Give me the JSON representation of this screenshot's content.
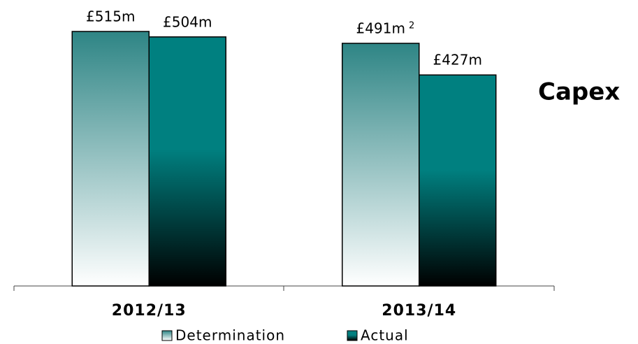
{
  "chart_data": {
    "type": "bar",
    "title": "Capex",
    "categories": [
      "2012/13",
      "2013/14"
    ],
    "series": [
      {
        "name": "Determination",
        "color": "#2e8585",
        "values": [
          515,
          491
        ],
        "value_labels": [
          "£515m",
          "£491m"
        ]
      },
      {
        "name": "Actual",
        "color": "#008080",
        "values": [
          504,
          427
        ],
        "value_labels": [
          "£504m",
          "£427m"
        ]
      }
    ],
    "annotations": [
      "2"
    ],
    "ylim": [
      0,
      515
    ]
  }
}
